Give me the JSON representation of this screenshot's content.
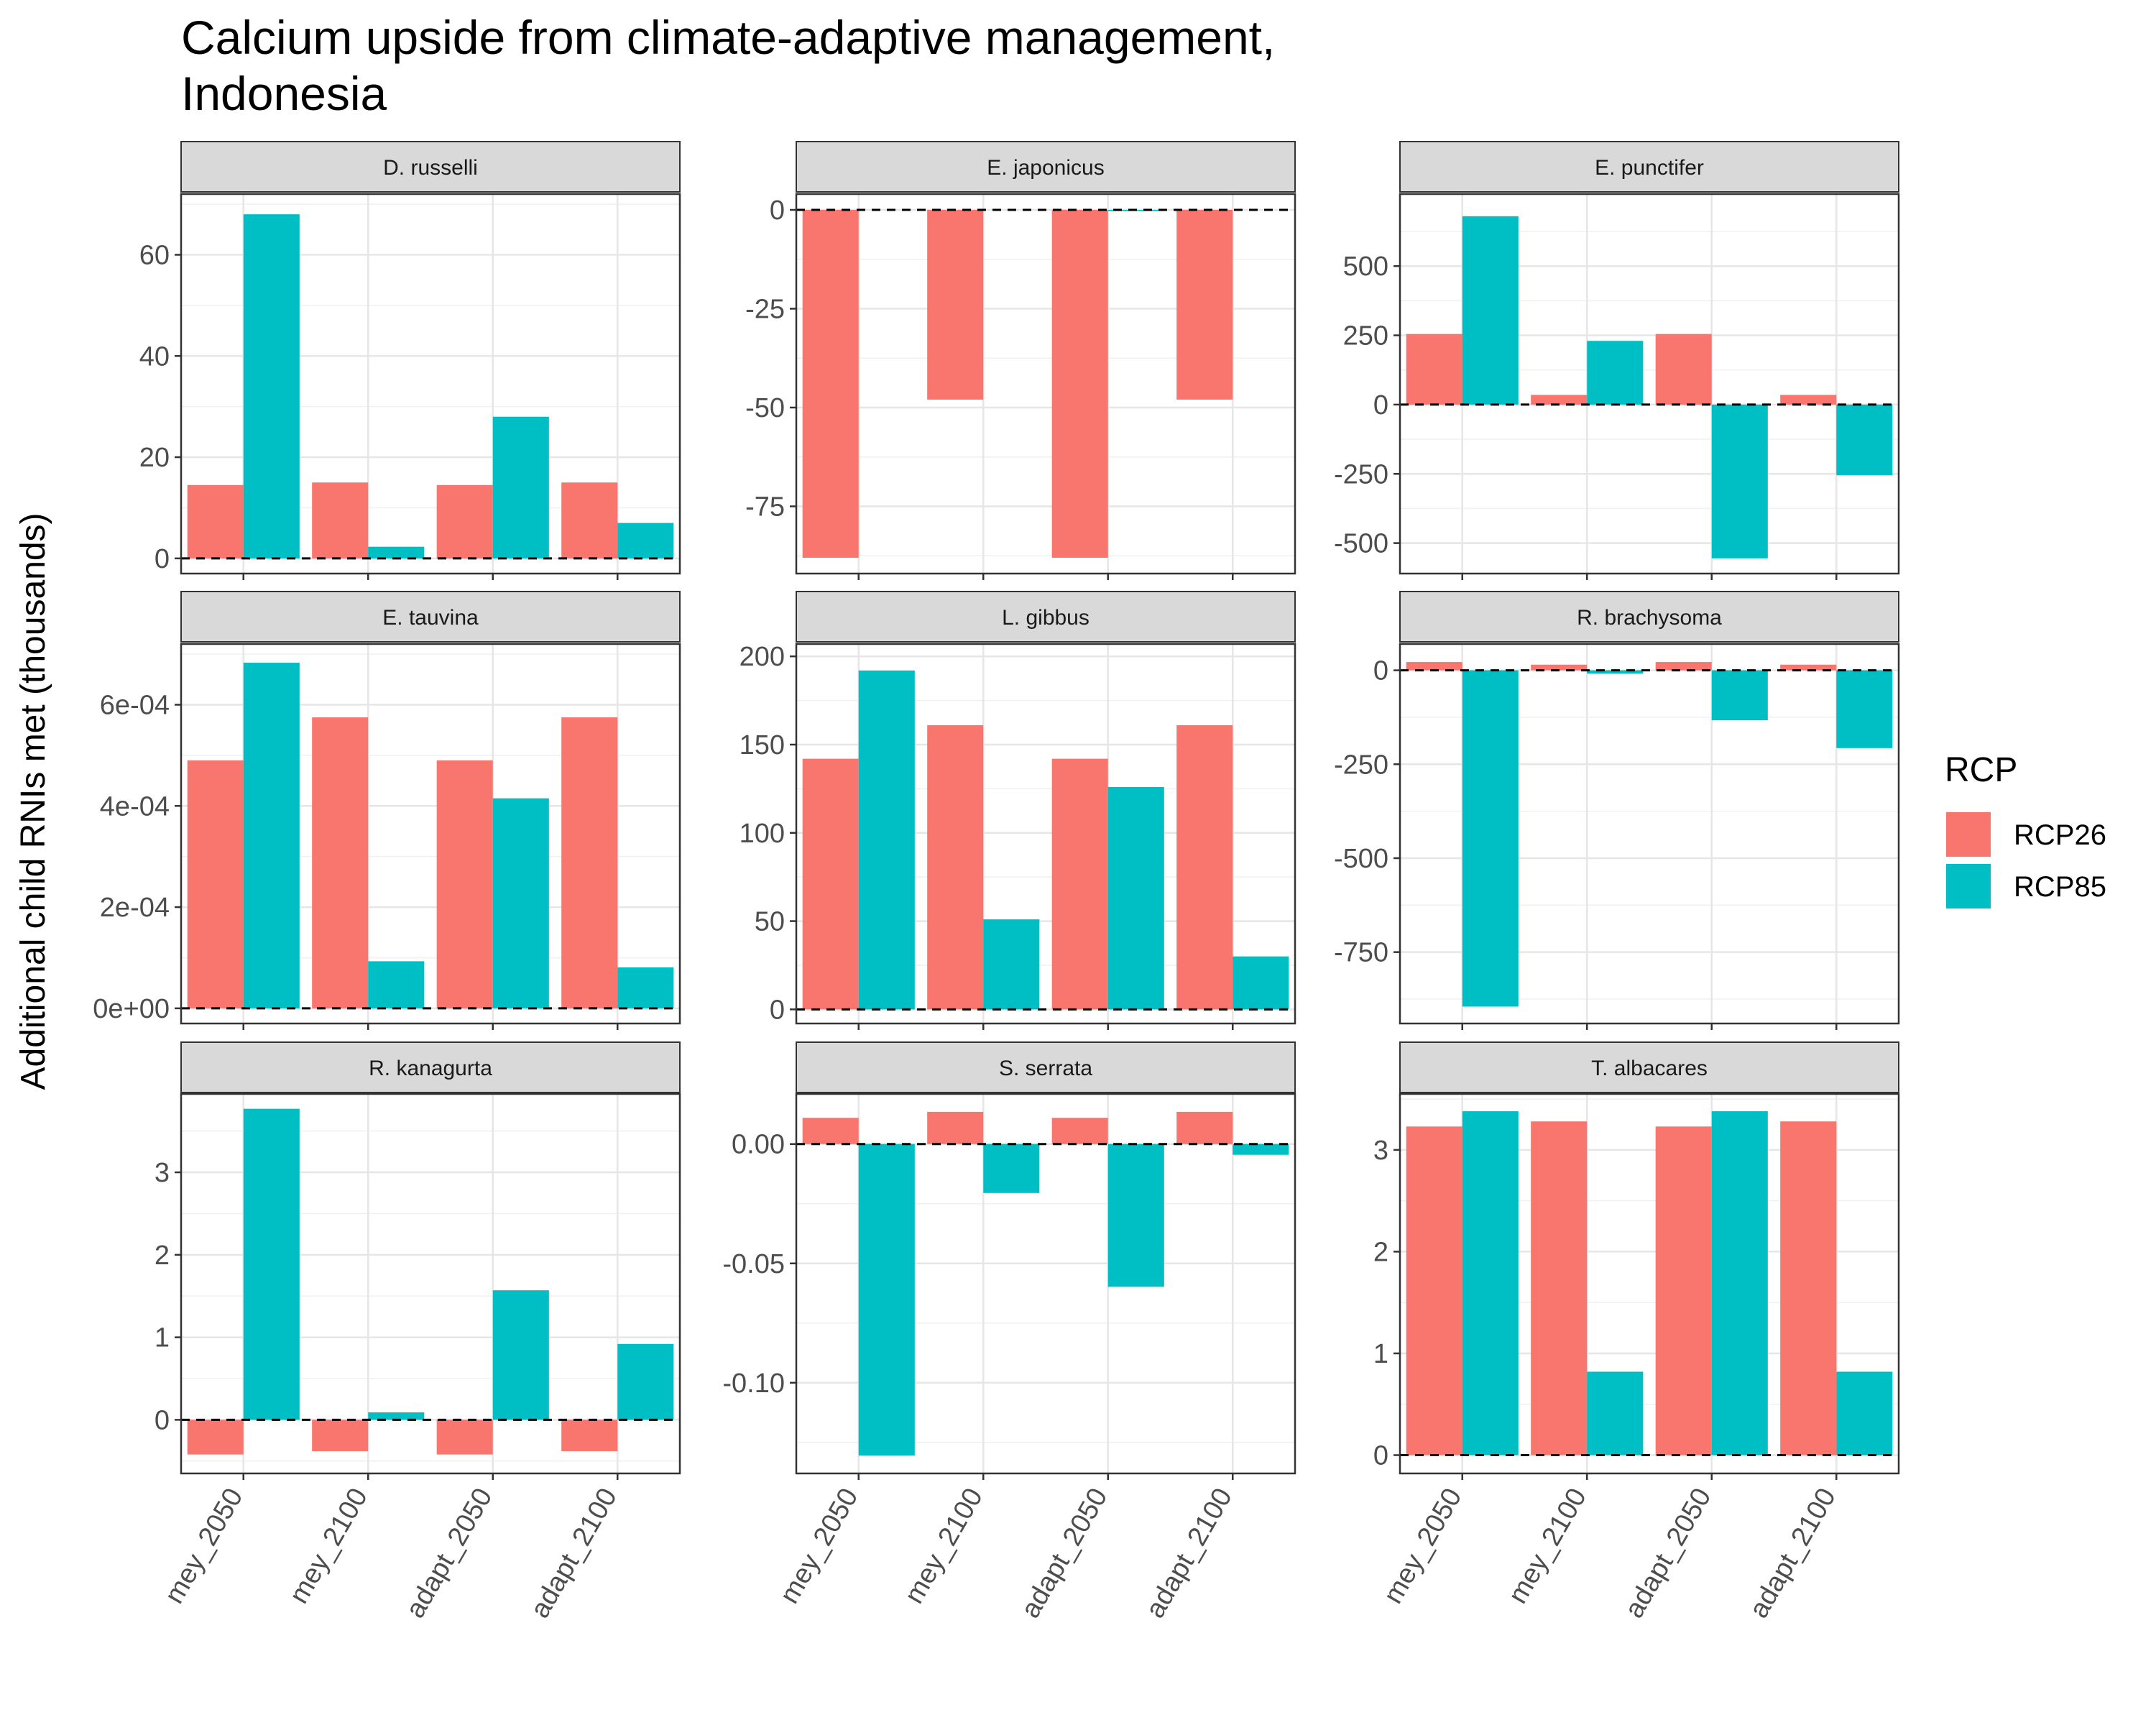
{
  "chart_data": {
    "type": "bar",
    "title_lines": [
      "Calcium upside from climate-adaptive management,",
      "Indonesia"
    ],
    "ylabel": "Additional child RNIs met (thousands)",
    "categories": [
      "mey_2050",
      "mey_2100",
      "adapt_2050",
      "adapt_2100"
    ],
    "legend": {
      "title": "RCP",
      "position": "right",
      "items": [
        {
          "name": "RCP26",
          "color": "#F8766D"
        },
        {
          "name": "RCP85",
          "color": "#00BFC4"
        }
      ]
    },
    "grid": true,
    "reference_line": {
      "y": 0,
      "style": "dashed"
    },
    "panels": [
      {
        "name": "D. russelli",
        "ylim": [
          -3,
          72
        ],
        "ticks": [
          {
            "v": 0,
            "label": "0"
          },
          {
            "v": 20,
            "label": "20"
          },
          {
            "v": 40,
            "label": "40"
          },
          {
            "v": 60,
            "label": "60"
          }
        ],
        "series": [
          {
            "name": "RCP26",
            "values": [
              14.5,
              15,
              14.5,
              15
            ]
          },
          {
            "name": "RCP85",
            "values": [
              68,
              2.3,
              28,
              7
            ]
          }
        ]
      },
      {
        "name": "E. japonicus",
        "ylim": [
          -92,
          4
        ],
        "ticks": [
          {
            "v": -75,
            "label": "-75"
          },
          {
            "v": -50,
            "label": "-50"
          },
          {
            "v": -25,
            "label": "-25"
          },
          {
            "v": 0,
            "label": "0"
          }
        ],
        "series": [
          {
            "name": "RCP26",
            "values": [
              -88,
              -48,
              -88,
              -48
            ]
          },
          {
            "name": "RCP85",
            "values": [
              0,
              0,
              -0.3,
              0
            ]
          }
        ]
      },
      {
        "name": "E. punctifer",
        "ylim": [
          -610,
          760
        ],
        "ticks": [
          {
            "v": -500,
            "label": "-500"
          },
          {
            "v": -250,
            "label": "-250"
          },
          {
            "v": 0,
            "label": "0"
          },
          {
            "v": 250,
            "label": "250"
          },
          {
            "v": 500,
            "label": "500"
          }
        ],
        "series": [
          {
            "name": "RCP26",
            "values": [
              255,
              35,
              255,
              35
            ]
          },
          {
            "name": "RCP85",
            "values": [
              680,
              230,
              -555,
              -255
            ]
          }
        ]
      },
      {
        "name": "E. tauvina",
        "ylim": [
          -3e-05,
          0.00072
        ],
        "ticks": [
          {
            "v": 0,
            "label": "0e+00"
          },
          {
            "v": 0.0002,
            "label": "2e-04"
          },
          {
            "v": 0.0004,
            "label": "4e-04"
          },
          {
            "v": 0.0006,
            "label": "6e-04"
          }
        ],
        "series": [
          {
            "name": "RCP26",
            "values": [
              0.00049,
              0.000575,
              0.00049,
              0.000575
            ]
          },
          {
            "name": "RCP85",
            "values": [
              0.000683,
              9.3e-05,
              0.000415,
              8.1e-05
            ]
          }
        ]
      },
      {
        "name": "L. gibbus",
        "ylim": [
          -8,
          207
        ],
        "ticks": [
          {
            "v": 0,
            "label": "0"
          },
          {
            "v": 50,
            "label": "50"
          },
          {
            "v": 100,
            "label": "100"
          },
          {
            "v": 150,
            "label": "150"
          },
          {
            "v": 200,
            "label": "200"
          }
        ],
        "series": [
          {
            "name": "RCP26",
            "values": [
              142,
              161,
              142,
              161
            ]
          },
          {
            "name": "RCP85",
            "values": [
              192,
              51,
              126,
              30
            ]
          }
        ]
      },
      {
        "name": "R. brachysoma",
        "ylim": [
          -940,
          70
        ],
        "ticks": [
          {
            "v": -750,
            "label": "-750"
          },
          {
            "v": -500,
            "label": "-500"
          },
          {
            "v": -250,
            "label": "-250"
          },
          {
            "v": 0,
            "label": "0"
          }
        ],
        "series": [
          {
            "name": "RCP26",
            "values": [
              22,
              15,
              22,
              15
            ]
          },
          {
            "name": "RCP85",
            "values": [
              -895,
              -9,
              -133,
              -207
            ]
          }
        ]
      },
      {
        "name": "R. kanagurta",
        "ylim": [
          -0.65,
          3.95
        ],
        "ticks": [
          {
            "v": 0,
            "label": "0"
          },
          {
            "v": 1,
            "label": "1"
          },
          {
            "v": 2,
            "label": "2"
          },
          {
            "v": 3,
            "label": "3"
          }
        ],
        "series": [
          {
            "name": "RCP26",
            "values": [
              -0.42,
              -0.38,
              -0.42,
              -0.38
            ]
          },
          {
            "name": "RCP85",
            "values": [
              3.77,
              0.09,
              1.57,
              0.92
            ]
          }
        ]
      },
      {
        "name": "S. serrata",
        "ylim": [
          -0.138,
          0.021
        ],
        "ticks": [
          {
            "v": -0.1,
            "label": "-0.10"
          },
          {
            "v": -0.05,
            "label": "-0.05"
          },
          {
            "v": 0,
            "label": "0.00"
          }
        ],
        "series": [
          {
            "name": "RCP26",
            "values": [
              0.011,
              0.0135,
              0.011,
              0.0135
            ]
          },
          {
            "name": "RCP85",
            "values": [
              -0.1305,
              -0.0205,
              -0.0598,
              -0.0045
            ]
          }
        ]
      },
      {
        "name": "T. albacares",
        "ylim": [
          -0.18,
          3.55
        ],
        "ticks": [
          {
            "v": 0,
            "label": "0"
          },
          {
            "v": 1,
            "label": "1"
          },
          {
            "v": 2,
            "label": "2"
          },
          {
            "v": 3,
            "label": "3"
          }
        ],
        "series": [
          {
            "name": "RCP26",
            "values": [
              3.23,
              3.28,
              3.23,
              3.28
            ]
          },
          {
            "name": "RCP85",
            "values": [
              3.38,
              0.82,
              3.38,
              0.82
            ]
          }
        ]
      }
    ]
  }
}
